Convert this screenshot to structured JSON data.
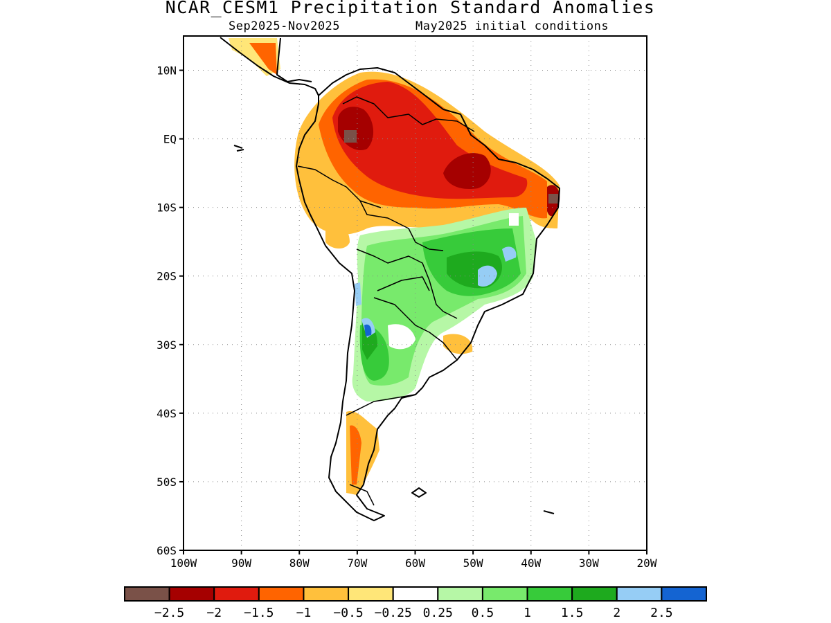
{
  "title": "NCAR_CESM1 Precipitation Standard Anomalies",
  "subtitle_period": "Sep2025-Nov2025",
  "subtitle_init": "May2025 initial conditions",
  "map": {
    "lon_range": [
      -100,
      -20
    ],
    "lat_range": [
      -60,
      15
    ],
    "grid_lines": "dotted",
    "lat_ticks": [
      {
        "value": 10,
        "label": "10N"
      },
      {
        "value": 0,
        "label": "EQ"
      },
      {
        "value": -10,
        "label": "10S"
      },
      {
        "value": -20,
        "label": "20S"
      },
      {
        "value": -30,
        "label": "30S"
      },
      {
        "value": -40,
        "label": "40S"
      },
      {
        "value": -50,
        "label": "50S"
      },
      {
        "value": -60,
        "label": "60S"
      }
    ],
    "lon_ticks": [
      {
        "value": -100,
        "label": "100W"
      },
      {
        "value": -90,
        "label": "90W"
      },
      {
        "value": -80,
        "label": "80W"
      },
      {
        "value": -70,
        "label": "70W"
      },
      {
        "value": -60,
        "label": "60W"
      },
      {
        "value": -50,
        "label": "50W"
      },
      {
        "value": -40,
        "label": "40W"
      },
      {
        "value": -30,
        "label": "30W"
      },
      {
        "value": -20,
        "label": "20W"
      }
    ]
  },
  "colorbar": {
    "colors": [
      "#7a5148",
      "#a50000",
      "#e01b0e",
      "#ff6400",
      "#ffc03c",
      "#ffe678",
      "#ffffff",
      "#b6f7a6",
      "#78ea6c",
      "#37cb3a",
      "#1eaa1e",
      "#96cdf5",
      "#1464d2"
    ],
    "labels": [
      "-2.5",
      "-2",
      "-1.5",
      "-1",
      "-0.5",
      "-0.25",
      "0.25",
      "0.5",
      "1",
      "1.5",
      "2",
      "2.5"
    ]
  }
}
